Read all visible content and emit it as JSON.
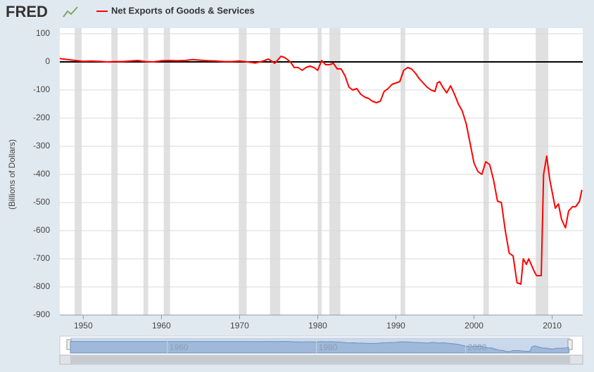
{
  "brand": "FRED",
  "chart_data": {
    "type": "line",
    "y_label": "(Billions of Dollars)",
    "xlim": [
      1947,
      2014
    ],
    "ylim": [
      -900,
      100
    ],
    "xticks": [
      1950,
      1960,
      1970,
      1980,
      1990,
      2000,
      2010
    ],
    "yticks": [
      100,
      0,
      -100,
      -200,
      -300,
      -400,
      -500,
      -600,
      -700,
      -800,
      -900
    ],
    "grid": true,
    "recessions": [
      [
        1948.9,
        1949.8
      ],
      [
        1953.6,
        1954.4
      ],
      [
        1957.7,
        1958.3
      ],
      [
        1960.3,
        1961.1
      ],
      [
        1969.9,
        1970.9
      ],
      [
        1973.9,
        1975.2
      ],
      [
        1980.0,
        1980.5
      ],
      [
        1981.5,
        1982.9
      ],
      [
        1990.6,
        1991.2
      ],
      [
        2001.2,
        2001.9
      ],
      [
        2007.9,
        2009.5
      ]
    ],
    "navigator_xticks": [
      1960,
      1980,
      2000
    ],
    "x": [
      1947,
      1948,
      1949,
      1950,
      1951,
      1952,
      1953,
      1954,
      1955,
      1956,
      1957,
      1958,
      1959,
      1960,
      1961,
      1962,
      1963,
      1964,
      1965,
      1966,
      1967,
      1968,
      1969,
      1970,
      1971,
      1972,
      1973,
      1973.7,
      1974.5,
      1975.3,
      1975.8,
      1976.5,
      1977,
      1977.5,
      1978,
      1978.5,
      1979,
      1979.5,
      1980,
      1980.5,
      1981,
      1981.5,
      1982,
      1982.5,
      1983,
      1983.5,
      1984,
      1984.5,
      1985,
      1985.5,
      1986,
      1986.5,
      1987,
      1987.5,
      1988,
      1988.5,
      1989,
      1989.5,
      1990,
      1990.5,
      1991,
      1991.5,
      1992,
      1992.5,
      1993,
      1993.5,
      1994,
      1994.5,
      1995,
      1995.3,
      1995.6,
      1996,
      1996.5,
      1997,
      1997.5,
      1998,
      1998.5,
      1999,
      1999.5,
      2000,
      2000.5,
      2001,
      2001.5,
      2002,
      2002.5,
      2003,
      2003.5,
      2004,
      2004.5,
      2005,
      2005.5,
      2006,
      2006.3,
      2006.7,
      2007,
      2007.7,
      2008,
      2008.6,
      2008.9,
      2009.3,
      2009.7,
      2010.4,
      2010.8,
      2011.2,
      2011.7,
      2012.1,
      2012.6,
      2013,
      2013.5,
      2013.8
    ],
    "series": [
      {
        "name": "Net Exports of Goods & Services",
        "color": "#ff0000",
        "values": [
          12,
          8,
          5,
          2,
          3,
          2,
          0,
          1,
          1,
          3,
          5,
          1,
          0,
          4,
          5,
          4,
          5,
          8,
          6,
          4,
          3,
          1,
          1,
          3,
          0,
          -4,
          3,
          10,
          -5,
          20,
          15,
          0,
          -20,
          -20,
          -30,
          -20,
          -15,
          -20,
          -30,
          5,
          -10,
          -10,
          -5,
          -25,
          -25,
          -50,
          -90,
          -100,
          -95,
          -115,
          -125,
          -130,
          -140,
          -145,
          -140,
          -105,
          -95,
          -80,
          -75,
          -70,
          -30,
          -20,
          -25,
          -40,
          -60,
          -75,
          -90,
          -100,
          -105,
          -75,
          -70,
          -90,
          -110,
          -85,
          -115,
          -150,
          -175,
          -220,
          -290,
          -360,
          -390,
          -400,
          -355,
          -365,
          -420,
          -495,
          -500,
          -600,
          -680,
          -690,
          -785,
          -790,
          -700,
          -720,
          -700,
          -745,
          -760,
          -760,
          -400,
          -335,
          -420,
          -520,
          -505,
          -560,
          -590,
          -530,
          -515,
          -515,
          -495,
          -455
        ]
      }
    ]
  }
}
